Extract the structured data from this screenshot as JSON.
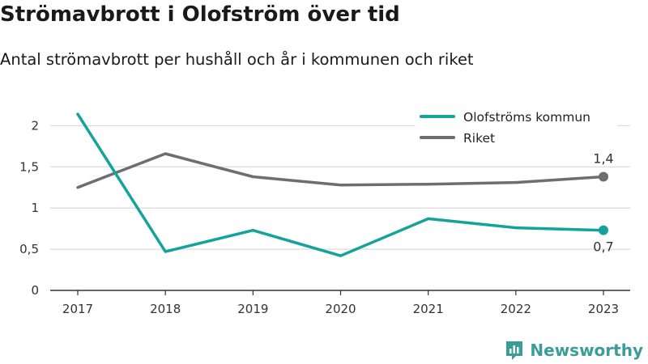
{
  "header": {
    "title": "Strömavbrott i Olofström över tid",
    "subtitle": "Antal strömavbrott per hushåll och år i kommunen och riket"
  },
  "brand": {
    "name": "Newsworthy",
    "icon": "newsworthy-logo-icon",
    "color": "#3a9d98"
  },
  "chart_data": {
    "type": "line",
    "x": [
      "2017",
      "2018",
      "2019",
      "2020",
      "2021",
      "2022",
      "2023"
    ],
    "ylim": [
      0,
      2.2
    ],
    "yticks": [
      0,
      0.5,
      1,
      1.5,
      2
    ],
    "ytick_labels": [
      "0",
      "0,5",
      "1",
      "1,5",
      "2"
    ],
    "grid": true,
    "legend": "top-right",
    "series": [
      {
        "name": "Olofströms kommun",
        "color": "#13a39b",
        "values": [
          2.14,
          0.47,
          0.73,
          0.42,
          0.87,
          0.76,
          0.73
        ],
        "end_label": "0,7"
      },
      {
        "name": "Riket",
        "color": "#6e6d72",
        "values": [
          1.25,
          1.66,
          1.38,
          1.28,
          1.29,
          1.31,
          1.38
        ],
        "end_label": "1,4"
      }
    ]
  }
}
